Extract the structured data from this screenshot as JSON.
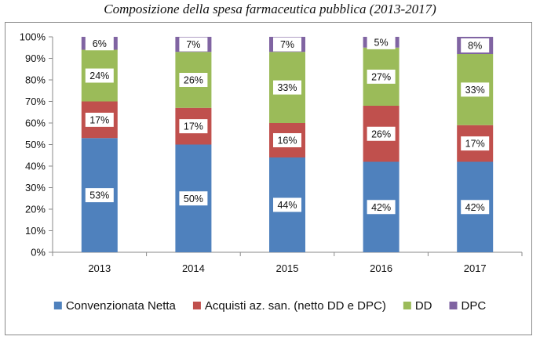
{
  "chart_data": {
    "type": "bar",
    "stacked": true,
    "title": "Composizione della spesa farmaceutica pubblica (2013-2017)",
    "categories": [
      "2013",
      "2014",
      "2015",
      "2016",
      "2017"
    ],
    "ylim": [
      0,
      100
    ],
    "y_ticks": [
      "0%",
      "10%",
      "20%",
      "30%",
      "40%",
      "50%",
      "60%",
      "70%",
      "80%",
      "90%",
      "100%"
    ],
    "grid": false,
    "legend_position": "bottom",
    "series": [
      {
        "name": "Convenzionata Netta",
        "color": "#4f81bd",
        "values": [
          53,
          50,
          44,
          42,
          42
        ],
        "labels": [
          "53%",
          "50%",
          "44%",
          "42%",
          "42%"
        ]
      },
      {
        "name": "Acquisti az. san. (netto DD e DPC)",
        "color": "#c0504d",
        "values": [
          17,
          17,
          16,
          26,
          17
        ],
        "labels": [
          "17%",
          "17%",
          "16%",
          "26%",
          "17%"
        ]
      },
      {
        "name": "DD",
        "color": "#9bbb59",
        "values": [
          24,
          26,
          33,
          27,
          33
        ],
        "labels": [
          "24%",
          "26%",
          "33%",
          "27%",
          "33%"
        ]
      },
      {
        "name": "DPC",
        "color": "#8064a2",
        "values": [
          6,
          7,
          7,
          5,
          8
        ],
        "labels": [
          "6%",
          "7%",
          "7%",
          "5%",
          "8%"
        ]
      }
    ]
  }
}
